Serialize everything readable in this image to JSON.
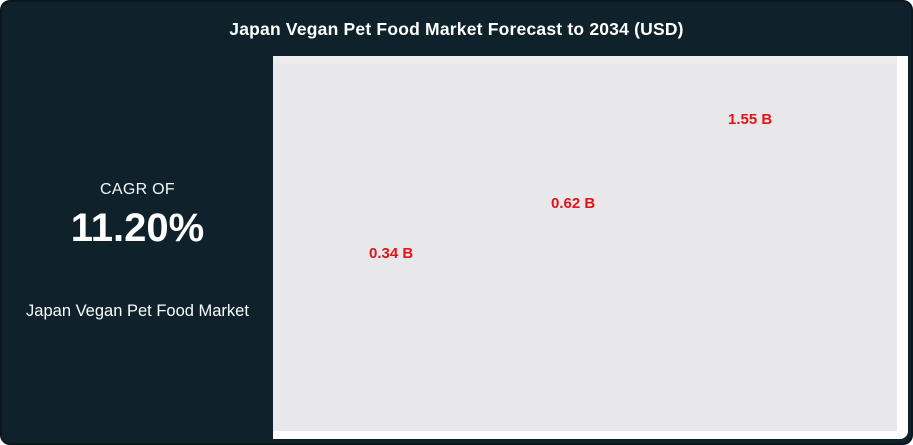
{
  "header": {
    "title": "Japan Vegan Pet Food Market Forecast to 2034 (USD)"
  },
  "sidebar": {
    "cagr_label": "CAGR OF",
    "cagr_value": "11.20%",
    "market_name": "Japan Vegan Pet Food Market"
  },
  "chart_data": {
    "type": "bar",
    "title": "Japan Vegan Pet Food Market Forecast to 2034 (USD)",
    "values": [
      0.34,
      0.62,
      1.55
    ],
    "points": [
      {
        "label": "0.34 B",
        "value": 0.34
      },
      {
        "label": "0.62 B",
        "value": 0.62
      },
      {
        "label": "1.55 B",
        "value": 1.55
      }
    ],
    "value_unit": "B",
    "currency": "USD",
    "grid": false,
    "legend": "none",
    "bars_visible": false,
    "label_color": "#e21418",
    "plot_background": "#e8e8ea"
  },
  "colors": {
    "card_background": "#0f222b",
    "title_text": "#ffffff",
    "data_label": "#e21418",
    "plot_background": "#e8e8ea"
  }
}
